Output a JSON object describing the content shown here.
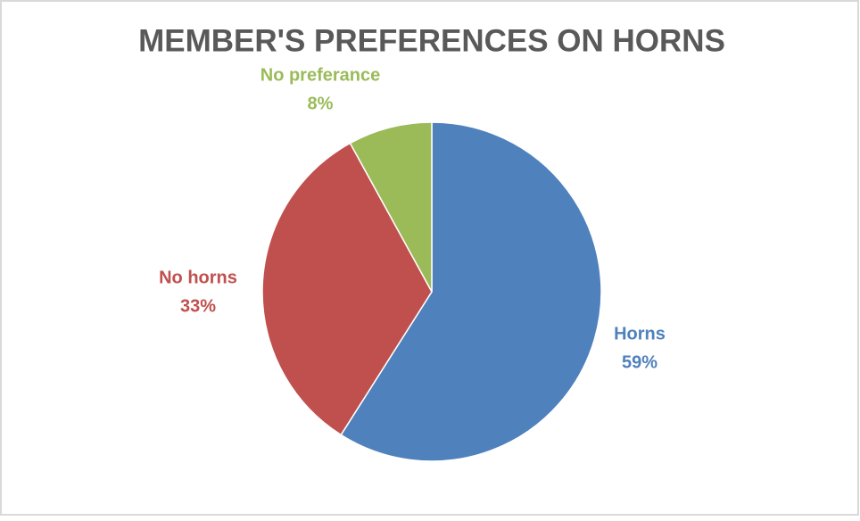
{
  "chart_data": {
    "type": "pie",
    "title": "MEMBER'S PREFERENCES ON HORNS",
    "categories": [
      "Horns",
      "No horns",
      "No preferance"
    ],
    "values": [
      59,
      33,
      8
    ],
    "value_labels": [
      "59%",
      "33%",
      "8%"
    ],
    "colors": [
      "#4f81bd",
      "#c0504d",
      "#9bbb59"
    ]
  }
}
